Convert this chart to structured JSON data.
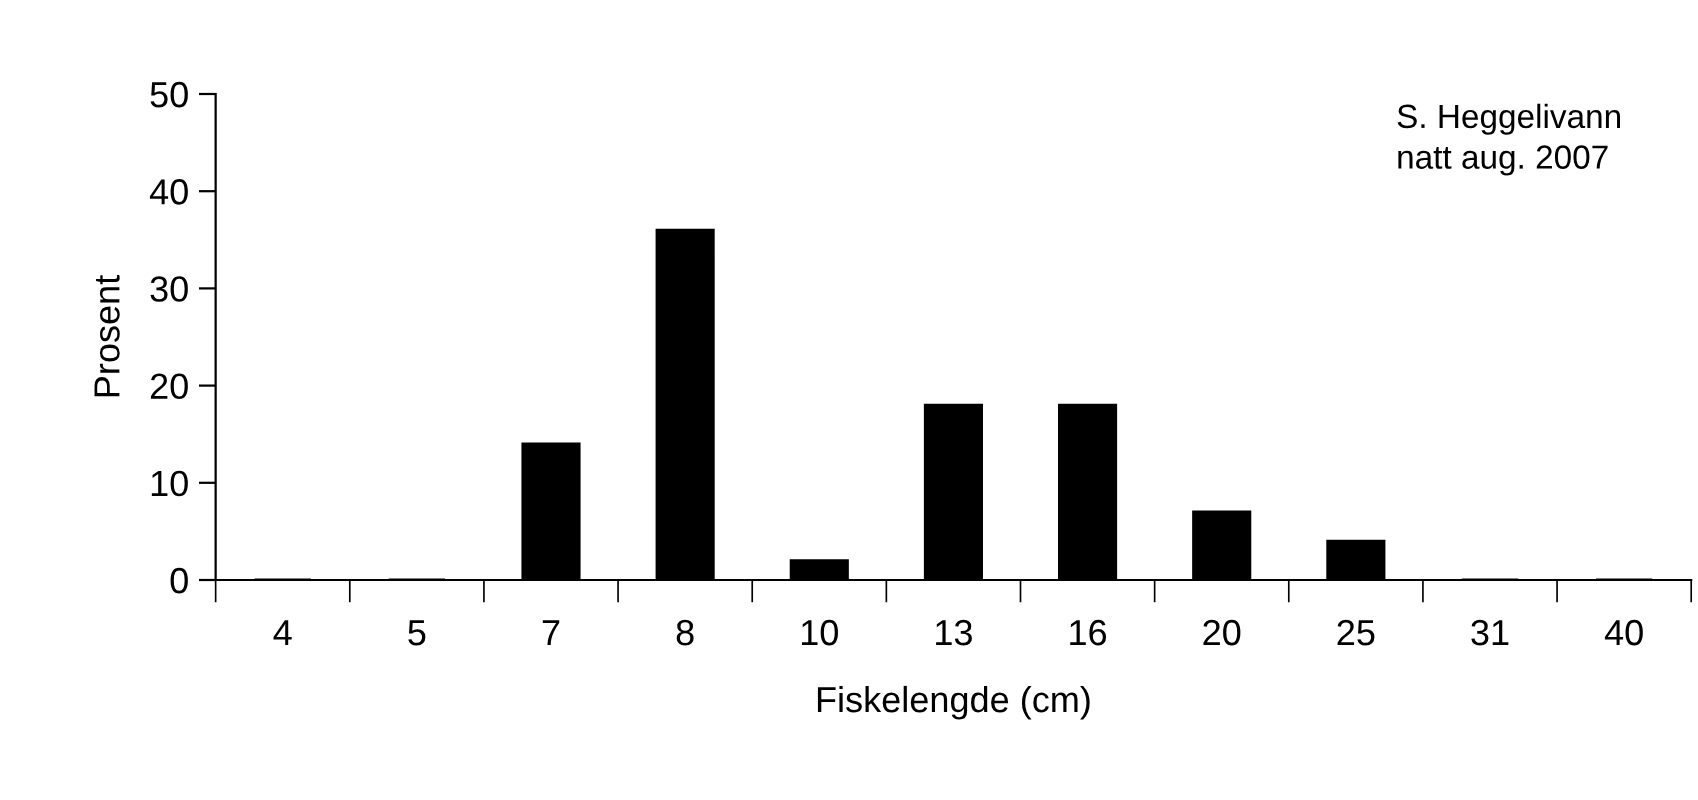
{
  "chart_data": {
    "type": "bar",
    "categories": [
      "4",
      "5",
      "7",
      "8",
      "10",
      "13",
      "16",
      "20",
      "25",
      "31",
      "40"
    ],
    "values": [
      0,
      0,
      14,
      36,
      2,
      18,
      18,
      7,
      4,
      0,
      0
    ],
    "color": "#000000",
    "xlabel": "Fiskelengde (cm)",
    "ylabel": "Prosent",
    "ylim": [
      0,
      50
    ],
    "yticks": [
      0,
      10,
      20,
      30,
      40,
      50
    ],
    "grid": false,
    "legend": false,
    "annotations": [
      "S. Heggelivann\nnatt aug. 2007"
    ]
  }
}
